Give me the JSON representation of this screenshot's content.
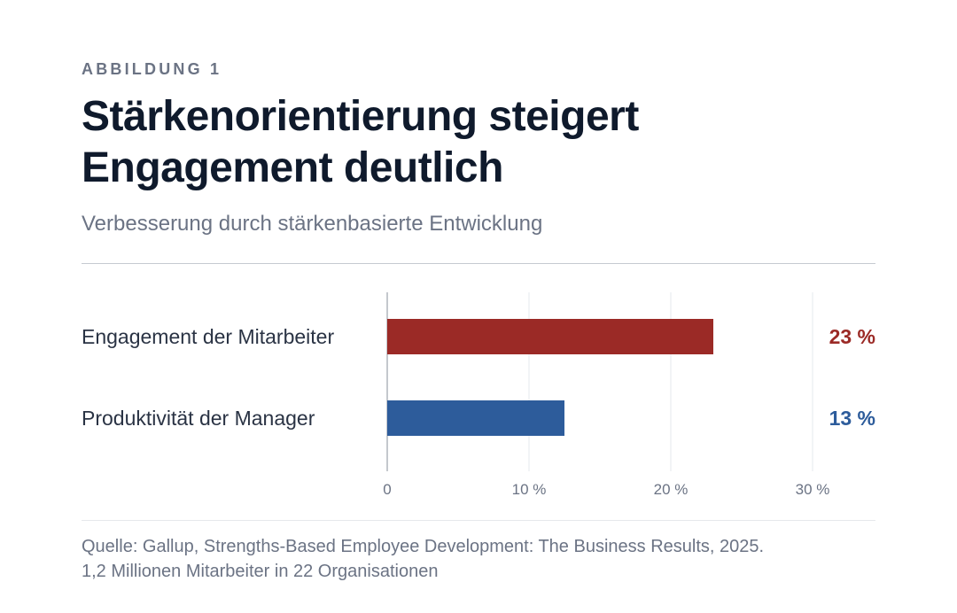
{
  "figure": {
    "eyebrow": "ABBILDUNG 1",
    "title": "Stärkenorientierung steigert Engagement deutlich",
    "subtitle": "Verbesserung durch stärkenbasierte Entwicklung",
    "source_line1": "Quelle: Gallup, Strengths-Based Employee Development: The Business Results, 2025.",
    "source_line2": "1,2 Millionen Mitarbeiter in 22 Organisationen"
  },
  "colors": {
    "text_dark": "#0f1a2c",
    "text_muted": "#6b7384",
    "grid": "#e6e8ec",
    "axis": "#8a909b"
  },
  "chart_data": {
    "type": "bar",
    "orientation": "horizontal",
    "categories": [
      "Engagement der Mitarbeiter",
      "Produktivität der Manager"
    ],
    "values": [
      23,
      12.5
    ],
    "value_labels": [
      "23 %",
      "13 %"
    ],
    "bar_colors": [
      "#9b2a26",
      "#2d5c9b"
    ],
    "xlim": [
      0,
      30
    ],
    "ticks": [
      0,
      10,
      20,
      30
    ],
    "tick_labels": [
      "0",
      "10 %",
      "20 %",
      "30 %"
    ],
    "grid": true
  }
}
